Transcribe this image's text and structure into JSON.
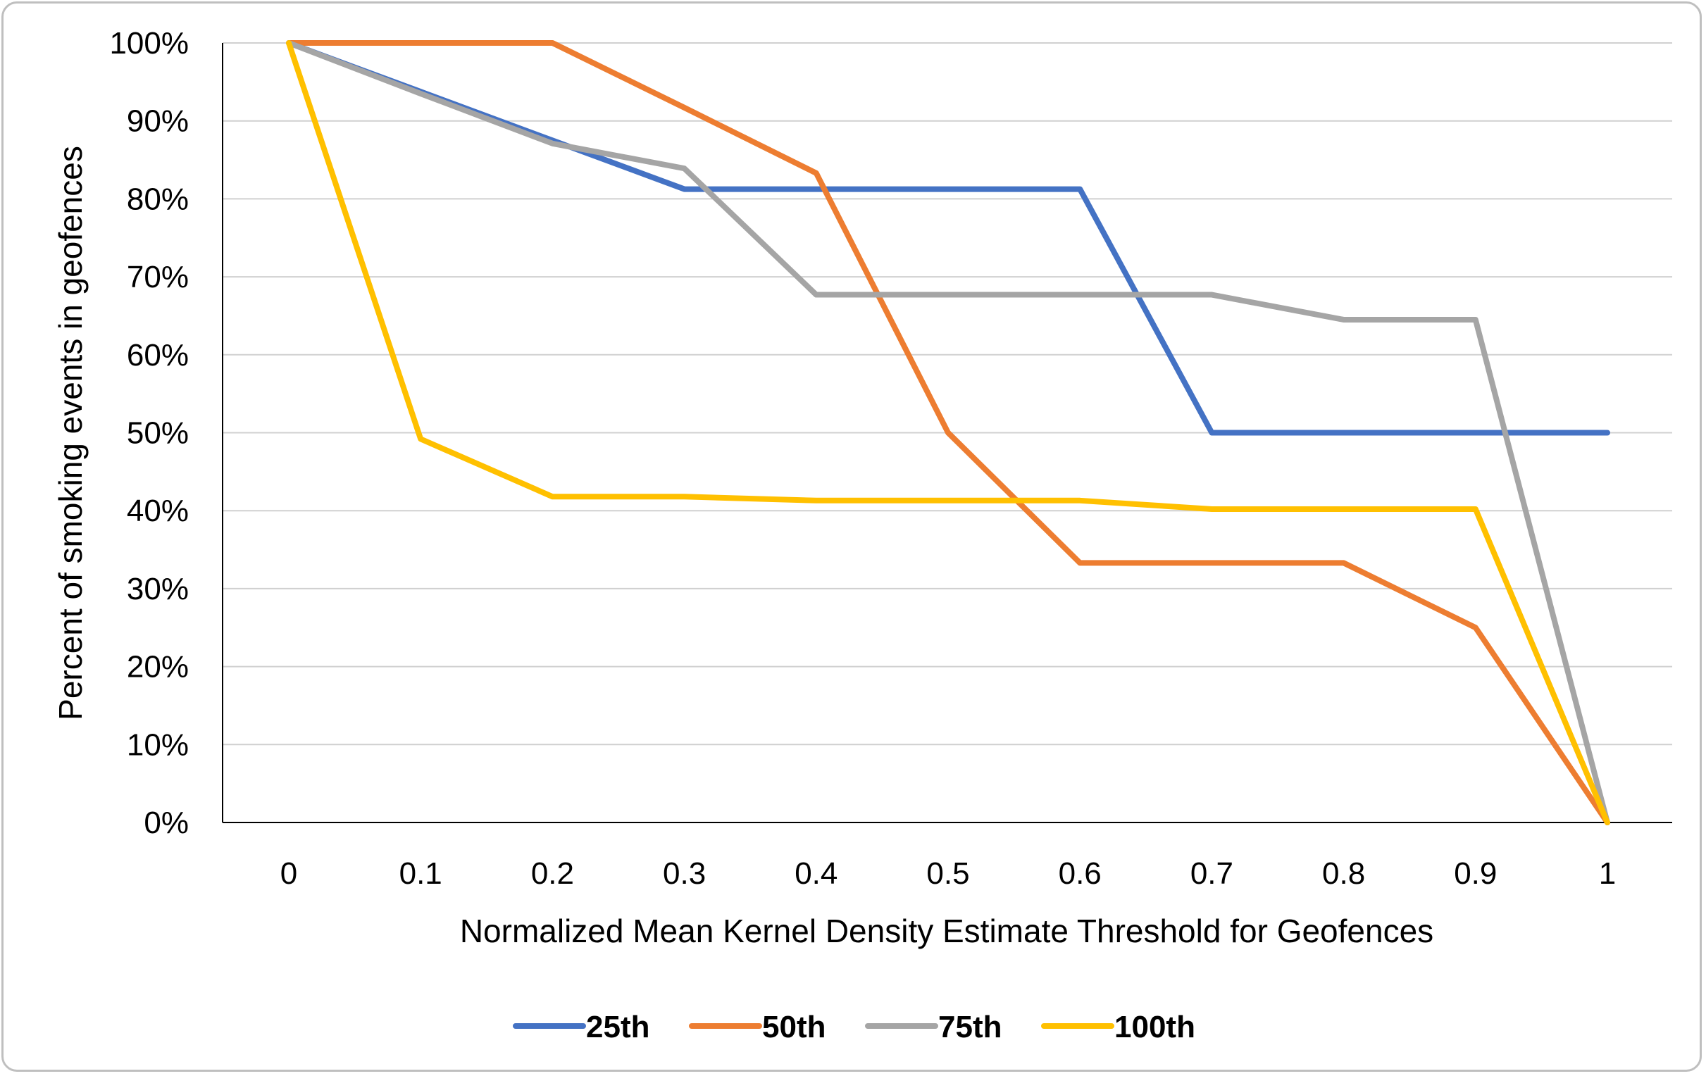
{
  "chart_data": {
    "type": "line",
    "title": "",
    "xlabel": "Normalized Mean Kernel Density Estimate Threshold for Geofences",
    "ylabel": "Percent of smoking events in geofences",
    "x": [
      0,
      0.1,
      0.2,
      0.3,
      0.4,
      0.5,
      0.6,
      0.7,
      0.8,
      0.9,
      1
    ],
    "x_tick_labels": [
      "0",
      "0.1",
      "0.2",
      "0.3",
      "0.4",
      "0.5",
      "0.6",
      "0.7",
      "0.8",
      "0.9",
      "1"
    ],
    "y_tick_labels": [
      "0%",
      "10%",
      "20%",
      "30%",
      "40%",
      "50%",
      "60%",
      "70%",
      "80%",
      "90%",
      "100%"
    ],
    "ylim": [
      0,
      100
    ],
    "y_unit": "%",
    "grid": "horizontal",
    "legend_position": "bottom",
    "series": [
      {
        "name": "25th",
        "color": "#4472C4",
        "values": [
          100,
          93.75,
          87.5,
          81.25,
          81.25,
          81.25,
          81.25,
          50,
          50,
          50,
          50
        ]
      },
      {
        "name": "50th",
        "color": "#ED7D31",
        "values": [
          100,
          100,
          100,
          91.7,
          83.3,
          50,
          33.3,
          33.3,
          33.3,
          25,
          0
        ]
      },
      {
        "name": "75th",
        "color": "#A5A5A5",
        "values": [
          100,
          93.5,
          87.1,
          83.9,
          67.7,
          67.7,
          67.7,
          67.7,
          64.5,
          64.5,
          0
        ]
      },
      {
        "name": "100th",
        "color": "#FFC000",
        "values": [
          100,
          49.2,
          41.8,
          41.8,
          41.3,
          41.3,
          41.3,
          40.2,
          40.2,
          40.2,
          0
        ]
      }
    ]
  }
}
